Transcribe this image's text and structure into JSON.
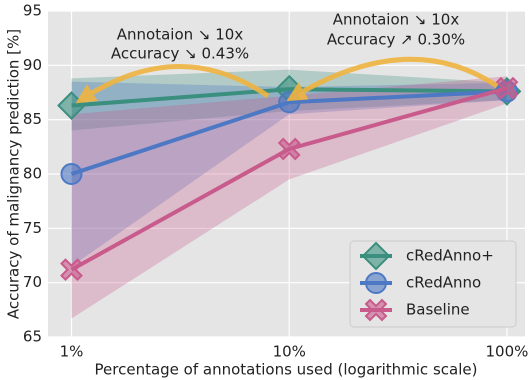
{
  "chart_data": {
    "type": "line",
    "xlabel": "Percentage of annotations used (logarithmic scale)",
    "ylabel": "Accuracy of malignancy prediction [%]",
    "x": [
      1,
      10,
      100
    ],
    "xscale": "log",
    "xlim": [
      0.78,
      121
    ],
    "xticks": [
      {
        "value": 1,
        "label": "1%"
      },
      {
        "value": 10,
        "label": "10%"
      },
      {
        "value": 100,
        "label": "100%"
      }
    ],
    "ylim": [
      65,
      95
    ],
    "yticks": [
      65,
      70,
      75,
      80,
      85,
      90,
      95
    ],
    "grid": true,
    "legend": "lower right",
    "annotations": [
      {
        "lines": [
          "Annotaion ↘ 10x",
          "Accuracy ↘ 0.43%"
        ]
      },
      {
        "lines": [
          "Annotaion ↘ 10x",
          "Accuracy ↗ 0.30%"
        ]
      }
    ],
    "series": [
      {
        "name": "cRedAnno+",
        "color": "#3a8f7e",
        "marker": "diamond",
        "values": [
          86.3,
          87.8,
          87.6
        ],
        "lower": [
          84.0,
          85.8,
          86.8
        ],
        "upper": [
          88.8,
          89.6,
          88.4
        ]
      },
      {
        "name": "cRedAnno",
        "color": "#4c78c4",
        "marker": "circle",
        "values": [
          80.0,
          86.6,
          87.6
        ],
        "lower": [
          71.5,
          85.5,
          86.8
        ],
        "upper": [
          88.5,
          88.0,
          88.4
        ]
      },
      {
        "name": "Baseline",
        "color": "#c85a8c",
        "marker": "x",
        "values": [
          71.2,
          82.3,
          87.9
        ],
        "lower": [
          66.7,
          79.5,
          86.5
        ],
        "upper": [
          85.5,
          87.2,
          89.0
        ]
      }
    ]
  }
}
